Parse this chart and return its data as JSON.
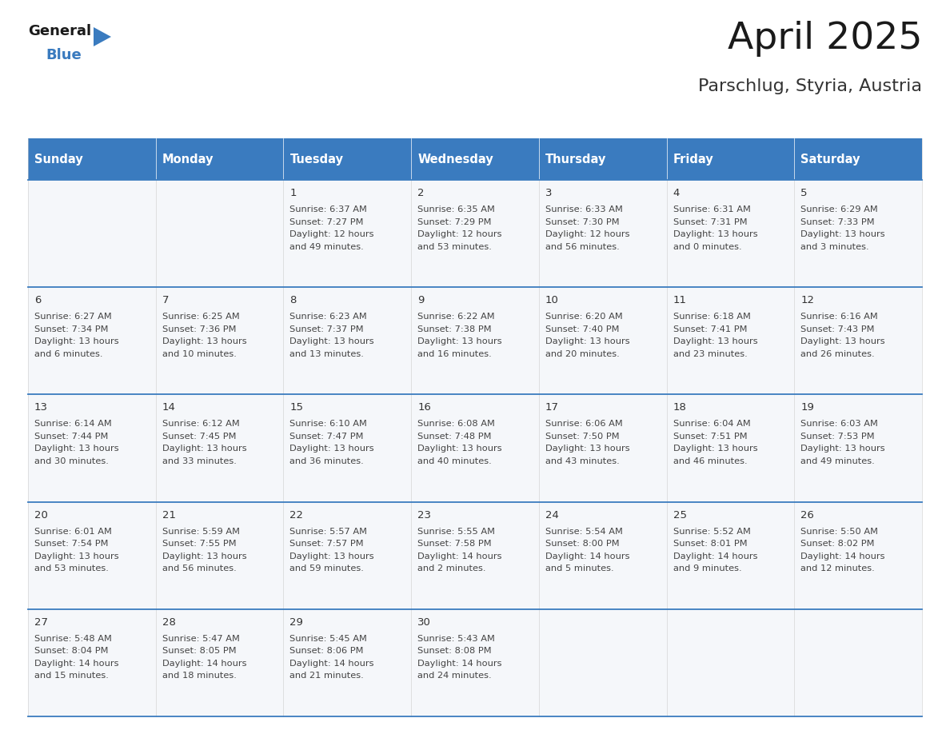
{
  "title": "April 2025",
  "subtitle": "Parschlug, Styria, Austria",
  "header_bg": "#3a7bbf",
  "header_text": "#ffffff",
  "cell_bg": "#f5f7fa",
  "day_number_color": "#333333",
  "text_color": "#444444",
  "line_color": "#3a7bbf",
  "border_color": "#aaaaaa",
  "days_of_week": [
    "Sunday",
    "Monday",
    "Tuesday",
    "Wednesday",
    "Thursday",
    "Friday",
    "Saturday"
  ],
  "weeks": [
    [
      {
        "day": "",
        "sunrise": "",
        "sunset": "",
        "daylight": ""
      },
      {
        "day": "",
        "sunrise": "",
        "sunset": "",
        "daylight": ""
      },
      {
        "day": "1",
        "sunrise": "6:37 AM",
        "sunset": "7:27 PM",
        "daylight": "12 hours and 49 minutes."
      },
      {
        "day": "2",
        "sunrise": "6:35 AM",
        "sunset": "7:29 PM",
        "daylight": "12 hours and 53 minutes."
      },
      {
        "day": "3",
        "sunrise": "6:33 AM",
        "sunset": "7:30 PM",
        "daylight": "12 hours and 56 minutes."
      },
      {
        "day": "4",
        "sunrise": "6:31 AM",
        "sunset": "7:31 PM",
        "daylight": "13 hours and 0 minutes."
      },
      {
        "day": "5",
        "sunrise": "6:29 AM",
        "sunset": "7:33 PM",
        "daylight": "13 hours and 3 minutes."
      }
    ],
    [
      {
        "day": "6",
        "sunrise": "6:27 AM",
        "sunset": "7:34 PM",
        "daylight": "13 hours and 6 minutes."
      },
      {
        "day": "7",
        "sunrise": "6:25 AM",
        "sunset": "7:36 PM",
        "daylight": "13 hours and 10 minutes."
      },
      {
        "day": "8",
        "sunrise": "6:23 AM",
        "sunset": "7:37 PM",
        "daylight": "13 hours and 13 minutes."
      },
      {
        "day": "9",
        "sunrise": "6:22 AM",
        "sunset": "7:38 PM",
        "daylight": "13 hours and 16 minutes."
      },
      {
        "day": "10",
        "sunrise": "6:20 AM",
        "sunset": "7:40 PM",
        "daylight": "13 hours and 20 minutes."
      },
      {
        "day": "11",
        "sunrise": "6:18 AM",
        "sunset": "7:41 PM",
        "daylight": "13 hours and 23 minutes."
      },
      {
        "day": "12",
        "sunrise": "6:16 AM",
        "sunset": "7:43 PM",
        "daylight": "13 hours and 26 minutes."
      }
    ],
    [
      {
        "day": "13",
        "sunrise": "6:14 AM",
        "sunset": "7:44 PM",
        "daylight": "13 hours and 30 minutes."
      },
      {
        "day": "14",
        "sunrise": "6:12 AM",
        "sunset": "7:45 PM",
        "daylight": "13 hours and 33 minutes."
      },
      {
        "day": "15",
        "sunrise": "6:10 AM",
        "sunset": "7:47 PM",
        "daylight": "13 hours and 36 minutes."
      },
      {
        "day": "16",
        "sunrise": "6:08 AM",
        "sunset": "7:48 PM",
        "daylight": "13 hours and 40 minutes."
      },
      {
        "day": "17",
        "sunrise": "6:06 AM",
        "sunset": "7:50 PM",
        "daylight": "13 hours and 43 minutes."
      },
      {
        "day": "18",
        "sunrise": "6:04 AM",
        "sunset": "7:51 PM",
        "daylight": "13 hours and 46 minutes."
      },
      {
        "day": "19",
        "sunrise": "6:03 AM",
        "sunset": "7:53 PM",
        "daylight": "13 hours and 49 minutes."
      }
    ],
    [
      {
        "day": "20",
        "sunrise": "6:01 AM",
        "sunset": "7:54 PM",
        "daylight": "13 hours and 53 minutes."
      },
      {
        "day": "21",
        "sunrise": "5:59 AM",
        "sunset": "7:55 PM",
        "daylight": "13 hours and 56 minutes."
      },
      {
        "day": "22",
        "sunrise": "5:57 AM",
        "sunset": "7:57 PM",
        "daylight": "13 hours and 59 minutes."
      },
      {
        "day": "23",
        "sunrise": "5:55 AM",
        "sunset": "7:58 PM",
        "daylight": "14 hours and 2 minutes."
      },
      {
        "day": "24",
        "sunrise": "5:54 AM",
        "sunset": "8:00 PM",
        "daylight": "14 hours and 5 minutes."
      },
      {
        "day": "25",
        "sunrise": "5:52 AM",
        "sunset": "8:01 PM",
        "daylight": "14 hours and 9 minutes."
      },
      {
        "day": "26",
        "sunrise": "5:50 AM",
        "sunset": "8:02 PM",
        "daylight": "14 hours and 12 minutes."
      }
    ],
    [
      {
        "day": "27",
        "sunrise": "5:48 AM",
        "sunset": "8:04 PM",
        "daylight": "14 hours and 15 minutes."
      },
      {
        "day": "28",
        "sunrise": "5:47 AM",
        "sunset": "8:05 PM",
        "daylight": "14 hours and 18 minutes."
      },
      {
        "day": "29",
        "sunrise": "5:45 AM",
        "sunset": "8:06 PM",
        "daylight": "14 hours and 21 minutes."
      },
      {
        "day": "30",
        "sunrise": "5:43 AM",
        "sunset": "8:08 PM",
        "daylight": "14 hours and 24 minutes."
      },
      {
        "day": "",
        "sunrise": "",
        "sunset": "",
        "daylight": ""
      },
      {
        "day": "",
        "sunrise": "",
        "sunset": "",
        "daylight": ""
      },
      {
        "day": "",
        "sunrise": "",
        "sunset": "",
        "daylight": ""
      }
    ]
  ]
}
